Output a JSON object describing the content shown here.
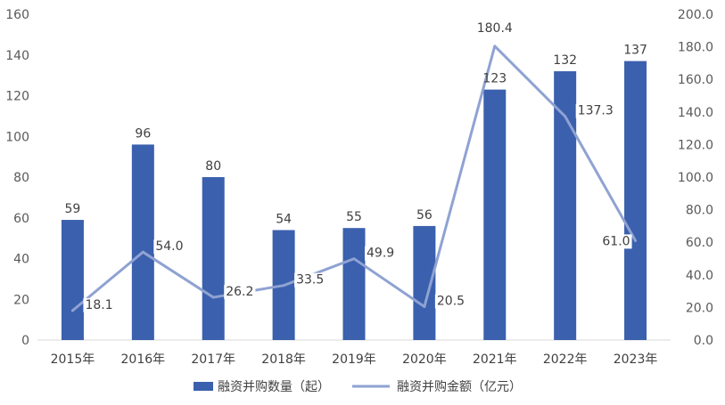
{
  "chart_data": {
    "type": "bar",
    "categories": [
      "2015年",
      "2016年",
      "2017年",
      "2018年",
      "2019年",
      "2020年",
      "2021年",
      "2022年",
      "2023年"
    ],
    "series": [
      {
        "name": "融资并购数量（起）",
        "kind": "bar",
        "axis": "left",
        "values": [
          59,
          96,
          80,
          54,
          55,
          56,
          123,
          132,
          137
        ]
      },
      {
        "name": "融资并购金额（亿元）",
        "kind": "line",
        "axis": "right",
        "values": [
          18.1,
          54.0,
          26.2,
          33.5,
          49.9,
          20.5,
          180.4,
          137.3,
          61.0
        ]
      }
    ],
    "y_left": {
      "range": [
        0,
        160
      ],
      "ticks": [
        "0",
        "20",
        "40",
        "60",
        "80",
        "100",
        "120",
        "140",
        "160"
      ]
    },
    "y_right": {
      "range": [
        0,
        200
      ],
      "ticks": [
        "0.0",
        "20.0",
        "40.0",
        "60.0",
        "80.0",
        "100.0",
        "120.0",
        "140.0",
        "160.0",
        "180.0",
        "200.0"
      ]
    },
    "bar_labels": [
      "59",
      "96",
      "80",
      "54",
      "55",
      "56",
      "123",
      "132",
      "137"
    ],
    "line_labels": [
      "18.1",
      "54.0",
      "26.2",
      "33.5",
      "49.9",
      "20.5",
      "180.4",
      "137.3",
      "61.0"
    ],
    "grid": false,
    "legend_position": "bottom",
    "colors": {
      "bar": "#3A60AE",
      "line": "#8FA2D2",
      "axis": "#D9D9D9"
    }
  }
}
